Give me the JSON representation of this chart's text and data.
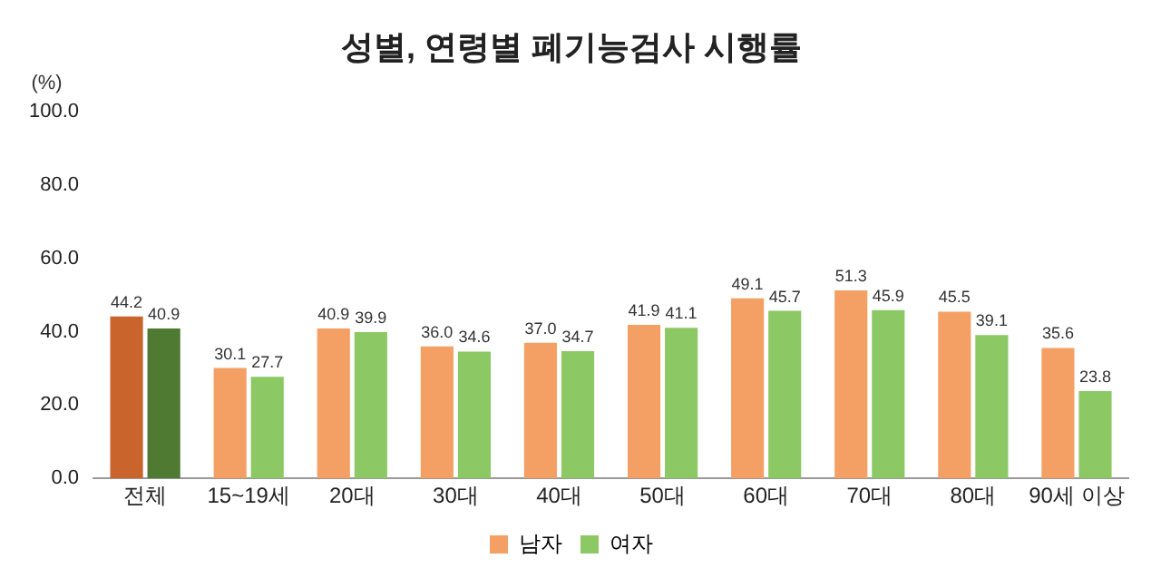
{
  "chart_data": {
    "type": "bar",
    "title": "성별, 연령별 폐기능검사 시행률",
    "ylabel": "(%)",
    "categories": [
      "전체",
      "15~19세",
      "20대",
      "30대",
      "40대",
      "50대",
      "60대",
      "70대",
      "80대",
      "90세 이상"
    ],
    "series": [
      {
        "name": "남자",
        "color": "#f4a064",
        "colors": [
          "#c8642c",
          "#f4a064",
          "#f4a064",
          "#f4a064",
          "#f4a064",
          "#f4a064",
          "#f4a064",
          "#f4a064",
          "#f4a064",
          "#f4a064"
        ],
        "values": [
          44.2,
          30.1,
          40.9,
          36.0,
          37.0,
          41.9,
          49.1,
          51.3,
          45.5,
          35.6
        ],
        "value_labels": [
          "44.2",
          "30.1",
          "40.9",
          "36.0",
          "37.0",
          "41.9",
          "49.1",
          "51.3",
          "45.5",
          "35.6"
        ]
      },
      {
        "name": "여자",
        "color": "#8cc864",
        "colors": [
          "#4e7a32",
          "#8cc864",
          "#8cc864",
          "#8cc864",
          "#8cc864",
          "#8cc864",
          "#8cc864",
          "#8cc864",
          "#8cc864",
          "#8cc864"
        ],
        "values": [
          40.9,
          27.7,
          39.9,
          34.6,
          34.7,
          41.1,
          45.7,
          45.9,
          39.1,
          23.8
        ],
        "value_labels": [
          "40.9",
          "27.7",
          "39.9",
          "34.6",
          "34.7",
          "41.1",
          "45.7",
          "45.9",
          "39.1",
          "23.8"
        ]
      }
    ],
    "ylim": [
      0,
      100
    ],
    "yticks": [
      {
        "value": 0,
        "label": "0.0"
      },
      {
        "value": 20,
        "label": "20.0"
      },
      {
        "value": 40,
        "label": "40.0"
      },
      {
        "value": 60,
        "label": "60.0"
      },
      {
        "value": 80,
        "label": "80.0"
      },
      {
        "value": 100,
        "label": "100.0"
      }
    ],
    "grid": false,
    "legend": "bottom"
  }
}
